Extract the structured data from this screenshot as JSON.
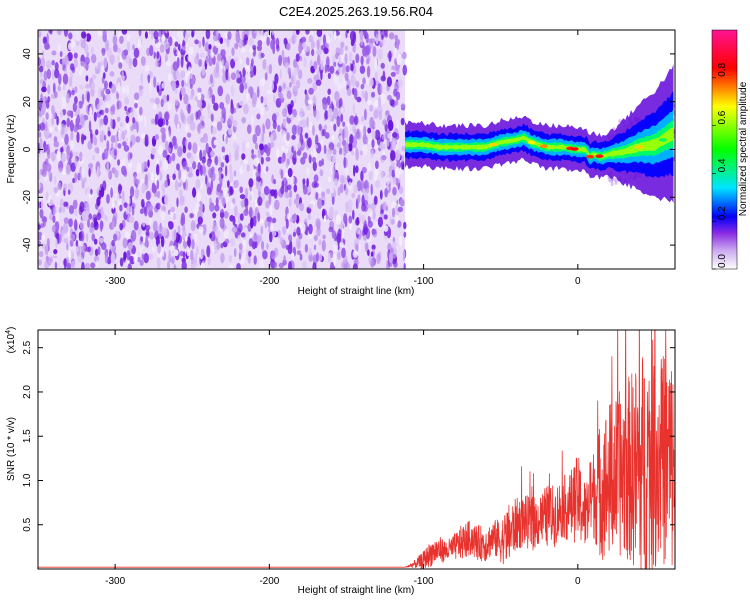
{
  "chart_data": [
    {
      "type": "heatmap",
      "title": "C2E4.2025.263.19.56.R04",
      "xlabel": "Height of straight line (km)",
      "ylabel": "Frequency (Hz)",
      "xlim": [
        -350,
        63
      ],
      "ylim": [
        -50,
        50
      ],
      "x_ticks": [
        -300,
        -200,
        -100,
        0
      ],
      "y_ticks": [
        -40,
        -20,
        0,
        20,
        40
      ],
      "noise_region_x": [
        -350,
        -112
      ],
      "signal_ridge": {
        "x": [
          -112,
          -100,
          -90,
          -80,
          -70,
          -60,
          -50,
          -40,
          -35,
          -30,
          -20,
          -10,
          0,
          5,
          8,
          10,
          15,
          20,
          30,
          40,
          50,
          55,
          60,
          63
        ],
        "y": [
          2,
          2,
          1,
          1,
          1,
          1,
          3,
          4,
          5,
          3,
          1,
          1,
          0,
          0,
          -3,
          -2,
          -3,
          -2,
          -1,
          1,
          2,
          4,
          6,
          7
        ]
      },
      "colorbar": {
        "label": "Normalized spectral amplitude",
        "range": [
          0,
          1
        ],
        "ticks": [
          "0.0",
          "0.2",
          "0.4",
          "0.6",
          "0.8"
        ],
        "colors": [
          "#ffffff",
          "#8a2be2",
          "#0000ff",
          "#00e5ff",
          "#00ff00",
          "#ffff00",
          "#ff0000",
          "#ff1493"
        ]
      }
    },
    {
      "type": "line",
      "xlabel": "Height of straight line (km)",
      "ylabel": "SNR (10 * v/v)",
      "y_multiplier": "(x10",
      "y_multiplier_exp": "4",
      "xlim": [
        -350,
        63
      ],
      "ylim": [
        0,
        2.7
      ],
      "x_ticks": [
        -300,
        -200,
        -100,
        0
      ],
      "y_ticks": [
        "0.5",
        "1.0",
        "1.5",
        "2.0",
        "2.5"
      ],
      "color": "#e8322e",
      "series": [
        {
          "x": [
            -350,
            -300,
            -200,
            -112,
            -105,
            -100,
            -95,
            -90,
            -85,
            -80,
            -75,
            -70,
            -65,
            -60,
            -55,
            -50,
            -45,
            -40,
            -35,
            -30,
            -25,
            -20,
            -15,
            -10,
            -5,
            0,
            5,
            10,
            15,
            20,
            25,
            30,
            35,
            40,
            45,
            50,
            55,
            60,
            63
          ],
          "values": [
            0.02,
            0.02,
            0.02,
            0.02,
            0.06,
            0.1,
            0.18,
            0.22,
            0.2,
            0.25,
            0.3,
            0.35,
            0.3,
            0.28,
            0.35,
            0.32,
            0.38,
            0.5,
            0.55,
            0.5,
            0.55,
            0.6,
            0.6,
            0.7,
            0.7,
            0.8,
            0.6,
            0.85,
            0.9,
            1.0,
            1.05,
            1.1,
            1.15,
            1.1,
            1.2,
            1.3,
            1.25,
            1.2,
            1.1
          ],
          "spread": [
            0,
            0,
            0,
            0,
            0.05,
            0.1,
            0.15,
            0.15,
            0.12,
            0.15,
            0.2,
            0.2,
            0.2,
            0.2,
            0.2,
            0.25,
            0.35,
            0.3,
            0.3,
            0.3,
            0.3,
            0.35,
            0.35,
            0.35,
            0.4,
            0.5,
            0.4,
            0.5,
            0.8,
            0.9,
            0.9,
            1.0,
            1.1,
            1.3,
            1.4,
            1.3,
            1.2,
            1.3,
            1.2
          ]
        }
      ]
    }
  ]
}
